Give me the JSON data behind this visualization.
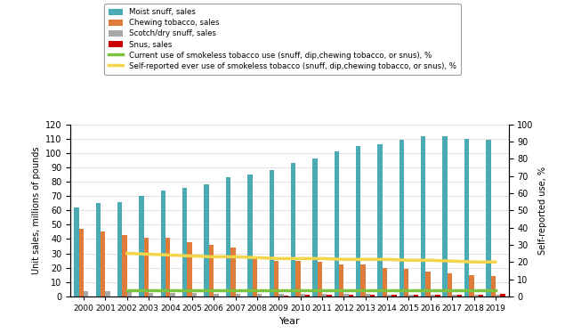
{
  "years": [
    2000,
    2001,
    2002,
    2003,
    2004,
    2005,
    2006,
    2007,
    2008,
    2009,
    2010,
    2011,
    2012,
    2013,
    2014,
    2015,
    2016,
    2017,
    2018,
    2019
  ],
  "moist_snuff": [
    62,
    65,
    66,
    70,
    74,
    76,
    78,
    83,
    85,
    88,
    93,
    96,
    101,
    105,
    106,
    109,
    112,
    112,
    110,
    109
  ],
  "chewing_tobacco": [
    47,
    45,
    43,
    41,
    41,
    38,
    36,
    34,
    28,
    25,
    25,
    24,
    22,
    22,
    20,
    19,
    17,
    16,
    15,
    14
  ],
  "scotch_dry_snuff": [
    3.5,
    3.5,
    3,
    2.5,
    2.5,
    2.5,
    2,
    2,
    2,
    2,
    1.5,
    1.5,
    1.5,
    1.5,
    1,
    1,
    1,
    1,
    1,
    1
  ],
  "snus": [
    0,
    0,
    0,
    0,
    0,
    0,
    0,
    0,
    0,
    0.5,
    1,
    1,
    1,
    1,
    1,
    1,
    1,
    1,
    1,
    1.5
  ],
  "current_use_x": [
    2002,
    2003,
    2004,
    2005,
    2006,
    2007,
    2008,
    2009,
    2010,
    2011,
    2012,
    2013,
    2014,
    2015,
    2016,
    2017,
    2018,
    2019
  ],
  "current_use_y": [
    3.5,
    3.5,
    3.5,
    3.5,
    3.5,
    3.5,
    3.5,
    3.5,
    3.5,
    3.5,
    3.5,
    3.5,
    3.5,
    3.5,
    3.5,
    3.5,
    3.5,
    3.5
  ],
  "ever_use_x": [
    2002,
    2003,
    2004,
    2005,
    2006,
    2007,
    2008,
    2009,
    2010,
    2011,
    2012,
    2013,
    2014,
    2015,
    2016,
    2017,
    2018,
    2019
  ],
  "ever_use_y": [
    25,
    24.5,
    24,
    23.5,
    23,
    23,
    22.5,
    22,
    22,
    22,
    21.5,
    21.5,
    21.5,
    21,
    21,
    20.5,
    20,
    20
  ],
  "moist_snuff_color": "#4AABB5",
  "chewing_tobacco_color": "#E07B39",
  "scotch_dry_snuff_color": "#A8A8A8",
  "snus_color": "#CC0000",
  "current_use_color": "#7DC340",
  "ever_use_color": "#F5D54A",
  "ylabel_left": "Unit sales, millions of pounds",
  "ylabel_right": "Self-reported use, %",
  "xlabel": "Year",
  "ylim_left": [
    0,
    120
  ],
  "ylim_right": [
    0,
    100
  ],
  "yticks_left": [
    0,
    10,
    20,
    30,
    40,
    50,
    60,
    70,
    80,
    90,
    100,
    110,
    120
  ],
  "yticks_right": [
    0,
    10,
    20,
    30,
    40,
    50,
    60,
    70,
    80,
    90,
    100
  ],
  "legend_labels": [
    "Moist snuff, sales",
    "Chewing tobacco, sales",
    "Scotch/dry snuff, sales",
    "Snus, sales",
    "Current use of smokeless tobacco use (snuff, dip,chewing tobacco, or snus), %",
    "Self-reported ever use of smokeless tobacco (snuff, dip,chewing tobacco, or snus), %"
  ]
}
